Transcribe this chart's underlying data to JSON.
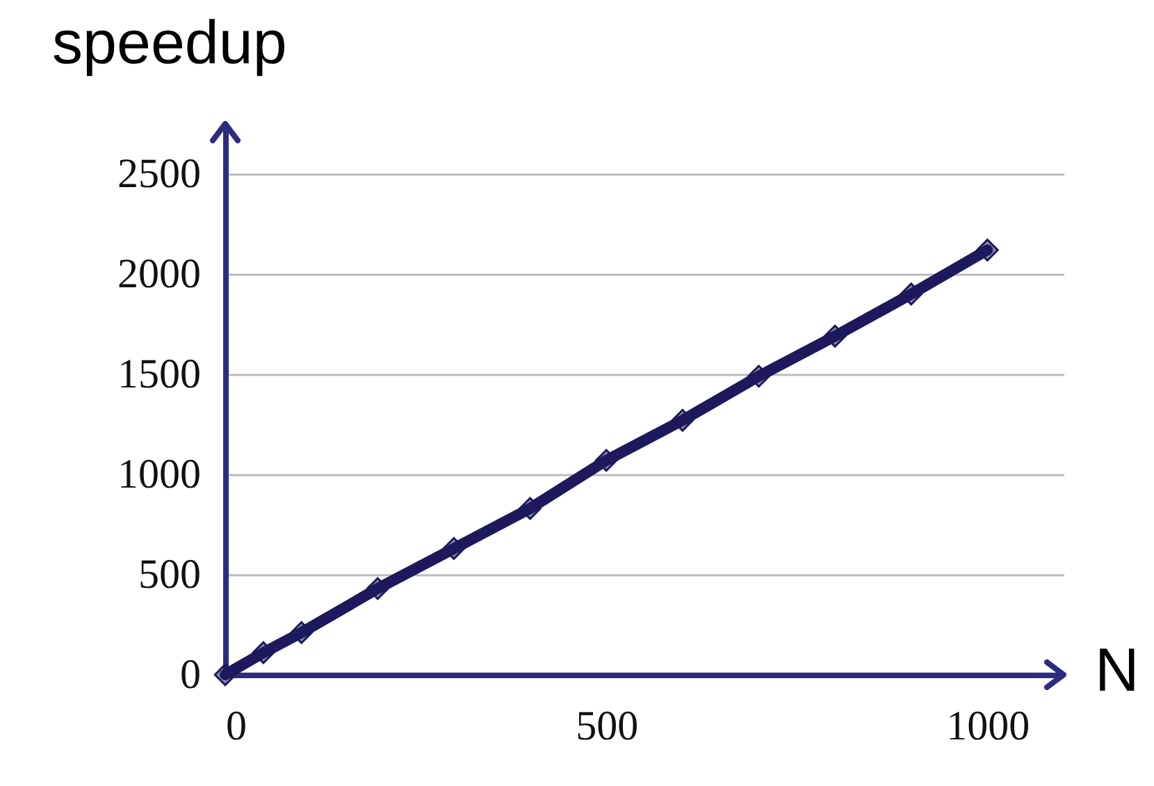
{
  "chart_data": {
    "type": "line",
    "xlabel": "N",
    "ylabel": "speedup",
    "x": [
      0,
      50,
      100,
      200,
      300,
      400,
      500,
      600,
      700,
      800,
      900,
      1000
    ],
    "series": [
      {
        "color": "#1c1a5c",
        "values": [
          0,
          110,
          210,
          430,
          630,
          830,
          1070,
          1270,
          1490,
          1690,
          1900,
          2120
        ]
      }
    ],
    "xlim": [
      0,
      1100
    ],
    "xticks": [
      0,
      500,
      1000
    ],
    "ylim": [
      0,
      2750
    ],
    "yticks": [
      0,
      500,
      1000,
      1500,
      2000,
      2500
    ],
    "grid": "y",
    "marker": "diamond",
    "line_style": "solid",
    "legend": false
  }
}
